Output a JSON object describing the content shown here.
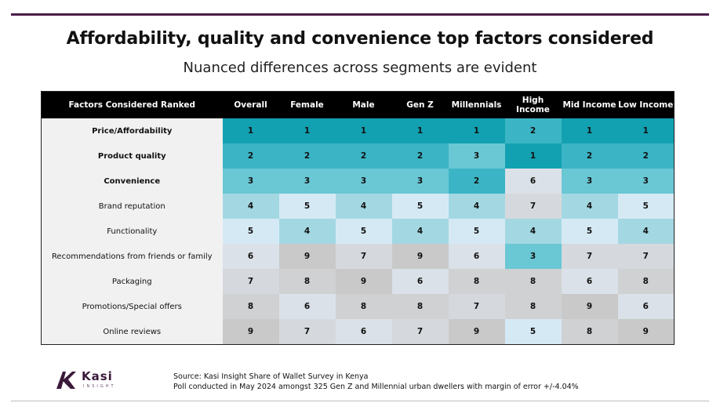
{
  "title": "Affordability, quality and convenience top factors considered",
  "subtitle": "Nuanced differences across segments are evident",
  "table": {
    "headers": [
      "Factors Considered Ranked",
      "Overall",
      "Female",
      "Male",
      "Gen Z",
      "Millennials",
      "High Income",
      "Mid Income",
      "Low Income"
    ],
    "rows": [
      {
        "factor": "Price/Affordability",
        "bold": true,
        "ranks": [
          1,
          1,
          1,
          1,
          1,
          2,
          1,
          1
        ]
      },
      {
        "factor": "Product quality",
        "bold": true,
        "ranks": [
          2,
          2,
          2,
          2,
          3,
          1,
          2,
          2
        ]
      },
      {
        "factor": "Convenience",
        "bold": true,
        "ranks": [
          3,
          3,
          3,
          3,
          2,
          6,
          3,
          3
        ]
      },
      {
        "factor": "Brand reputation",
        "bold": false,
        "ranks": [
          4,
          5,
          4,
          5,
          4,
          7,
          4,
          5
        ]
      },
      {
        "factor": "Functionality",
        "bold": false,
        "ranks": [
          5,
          4,
          5,
          4,
          5,
          4,
          5,
          4
        ]
      },
      {
        "factor": "Recommendations from friends or family",
        "bold": false,
        "ranks": [
          6,
          9,
          7,
          9,
          6,
          3,
          7,
          7
        ]
      },
      {
        "factor": "Packaging",
        "bold": false,
        "ranks": [
          7,
          8,
          9,
          6,
          8,
          8,
          6,
          8
        ]
      },
      {
        "factor": "Promotions/Special offers",
        "bold": false,
        "ranks": [
          8,
          6,
          8,
          8,
          7,
          8,
          9,
          6
        ]
      },
      {
        "factor": "Online reviews",
        "bold": false,
        "ranks": [
          9,
          7,
          6,
          7,
          9,
          5,
          8,
          9
        ]
      }
    ],
    "rank_colors": {
      "1": "#12a1b1",
      "2": "#3bb5c5",
      "3": "#6ac7d4",
      "4": "#a3d8e2",
      "5": "#d5e9f5",
      "6": "#dbe1e8",
      "7": "#d5d9dd",
      "8": "#cfd1d3",
      "9": "#c9c9c9"
    }
  },
  "logo": {
    "name": "Kasi",
    "tagline": "INSIGHT",
    "color": "#3a1a3a"
  },
  "source": {
    "line1": "Source: Kasi Insight Share of Wallet Survey in Kenya",
    "line2": "Poll conducted in May 2024 amongst 325  Gen Z and Millennial urban dwellers with margin of error +/-4.04%"
  }
}
